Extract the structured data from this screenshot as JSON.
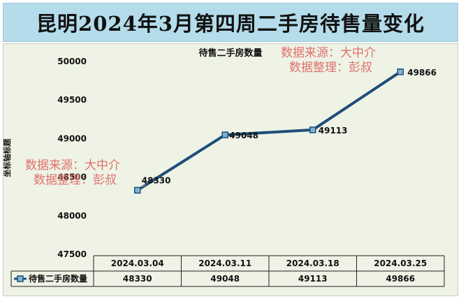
{
  "page_title": "昆明2024年3月第四周二手房待售量变化",
  "watermarks": [
    {
      "line1": "数据来源：大中介",
      "line2": "数据整理：彭叔"
    },
    {
      "line1": "数据来源：大中介",
      "line2": "数据整理：彭叔"
    }
  ],
  "colors": {
    "title_band": "#b4dcea",
    "plot_background": "#eef3e6",
    "series_line": "#1f4e79",
    "marker_fill": "#7fb3d5",
    "watermark": "#e0706c"
  },
  "chart_data": {
    "type": "line",
    "title": "待售二手房数量",
    "ylabel": "坐标轴标题",
    "xlabel": "",
    "categories": [
      "2024.03.04",
      "2024.03.11",
      "2024.03.18",
      "2024.03.25"
    ],
    "series": [
      {
        "name": "待售二手房数量",
        "values": [
          48330,
          49048,
          49113,
          49866
        ]
      }
    ],
    "ylim": [
      47500,
      50000
    ],
    "yticks": [
      47500,
      48000,
      48500,
      49000,
      49500,
      50000
    ],
    "data_labels": true,
    "grid": false,
    "data_table": true,
    "legend": "in data table"
  }
}
